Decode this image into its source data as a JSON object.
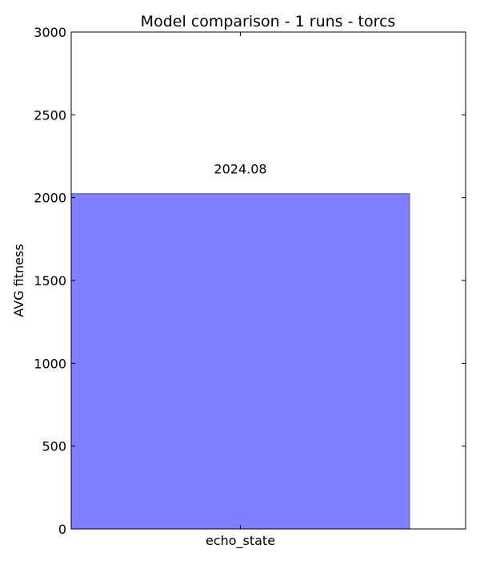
{
  "chart_data": {
    "type": "bar",
    "title": "Model comparison - 1 runs - torcs",
    "xlabel": "",
    "ylabel": "AVG fitness",
    "categories": [
      "echo_state"
    ],
    "values": [
      2024.08
    ],
    "data_labels": [
      "2024.08"
    ],
    "ylim": [
      0,
      3000
    ],
    "yticks": [
      0,
      500,
      1000,
      1500,
      2000,
      2500,
      3000
    ],
    "grid": false,
    "bar_color": "#7f7fff",
    "bar_edge_color": "#55559a"
  }
}
